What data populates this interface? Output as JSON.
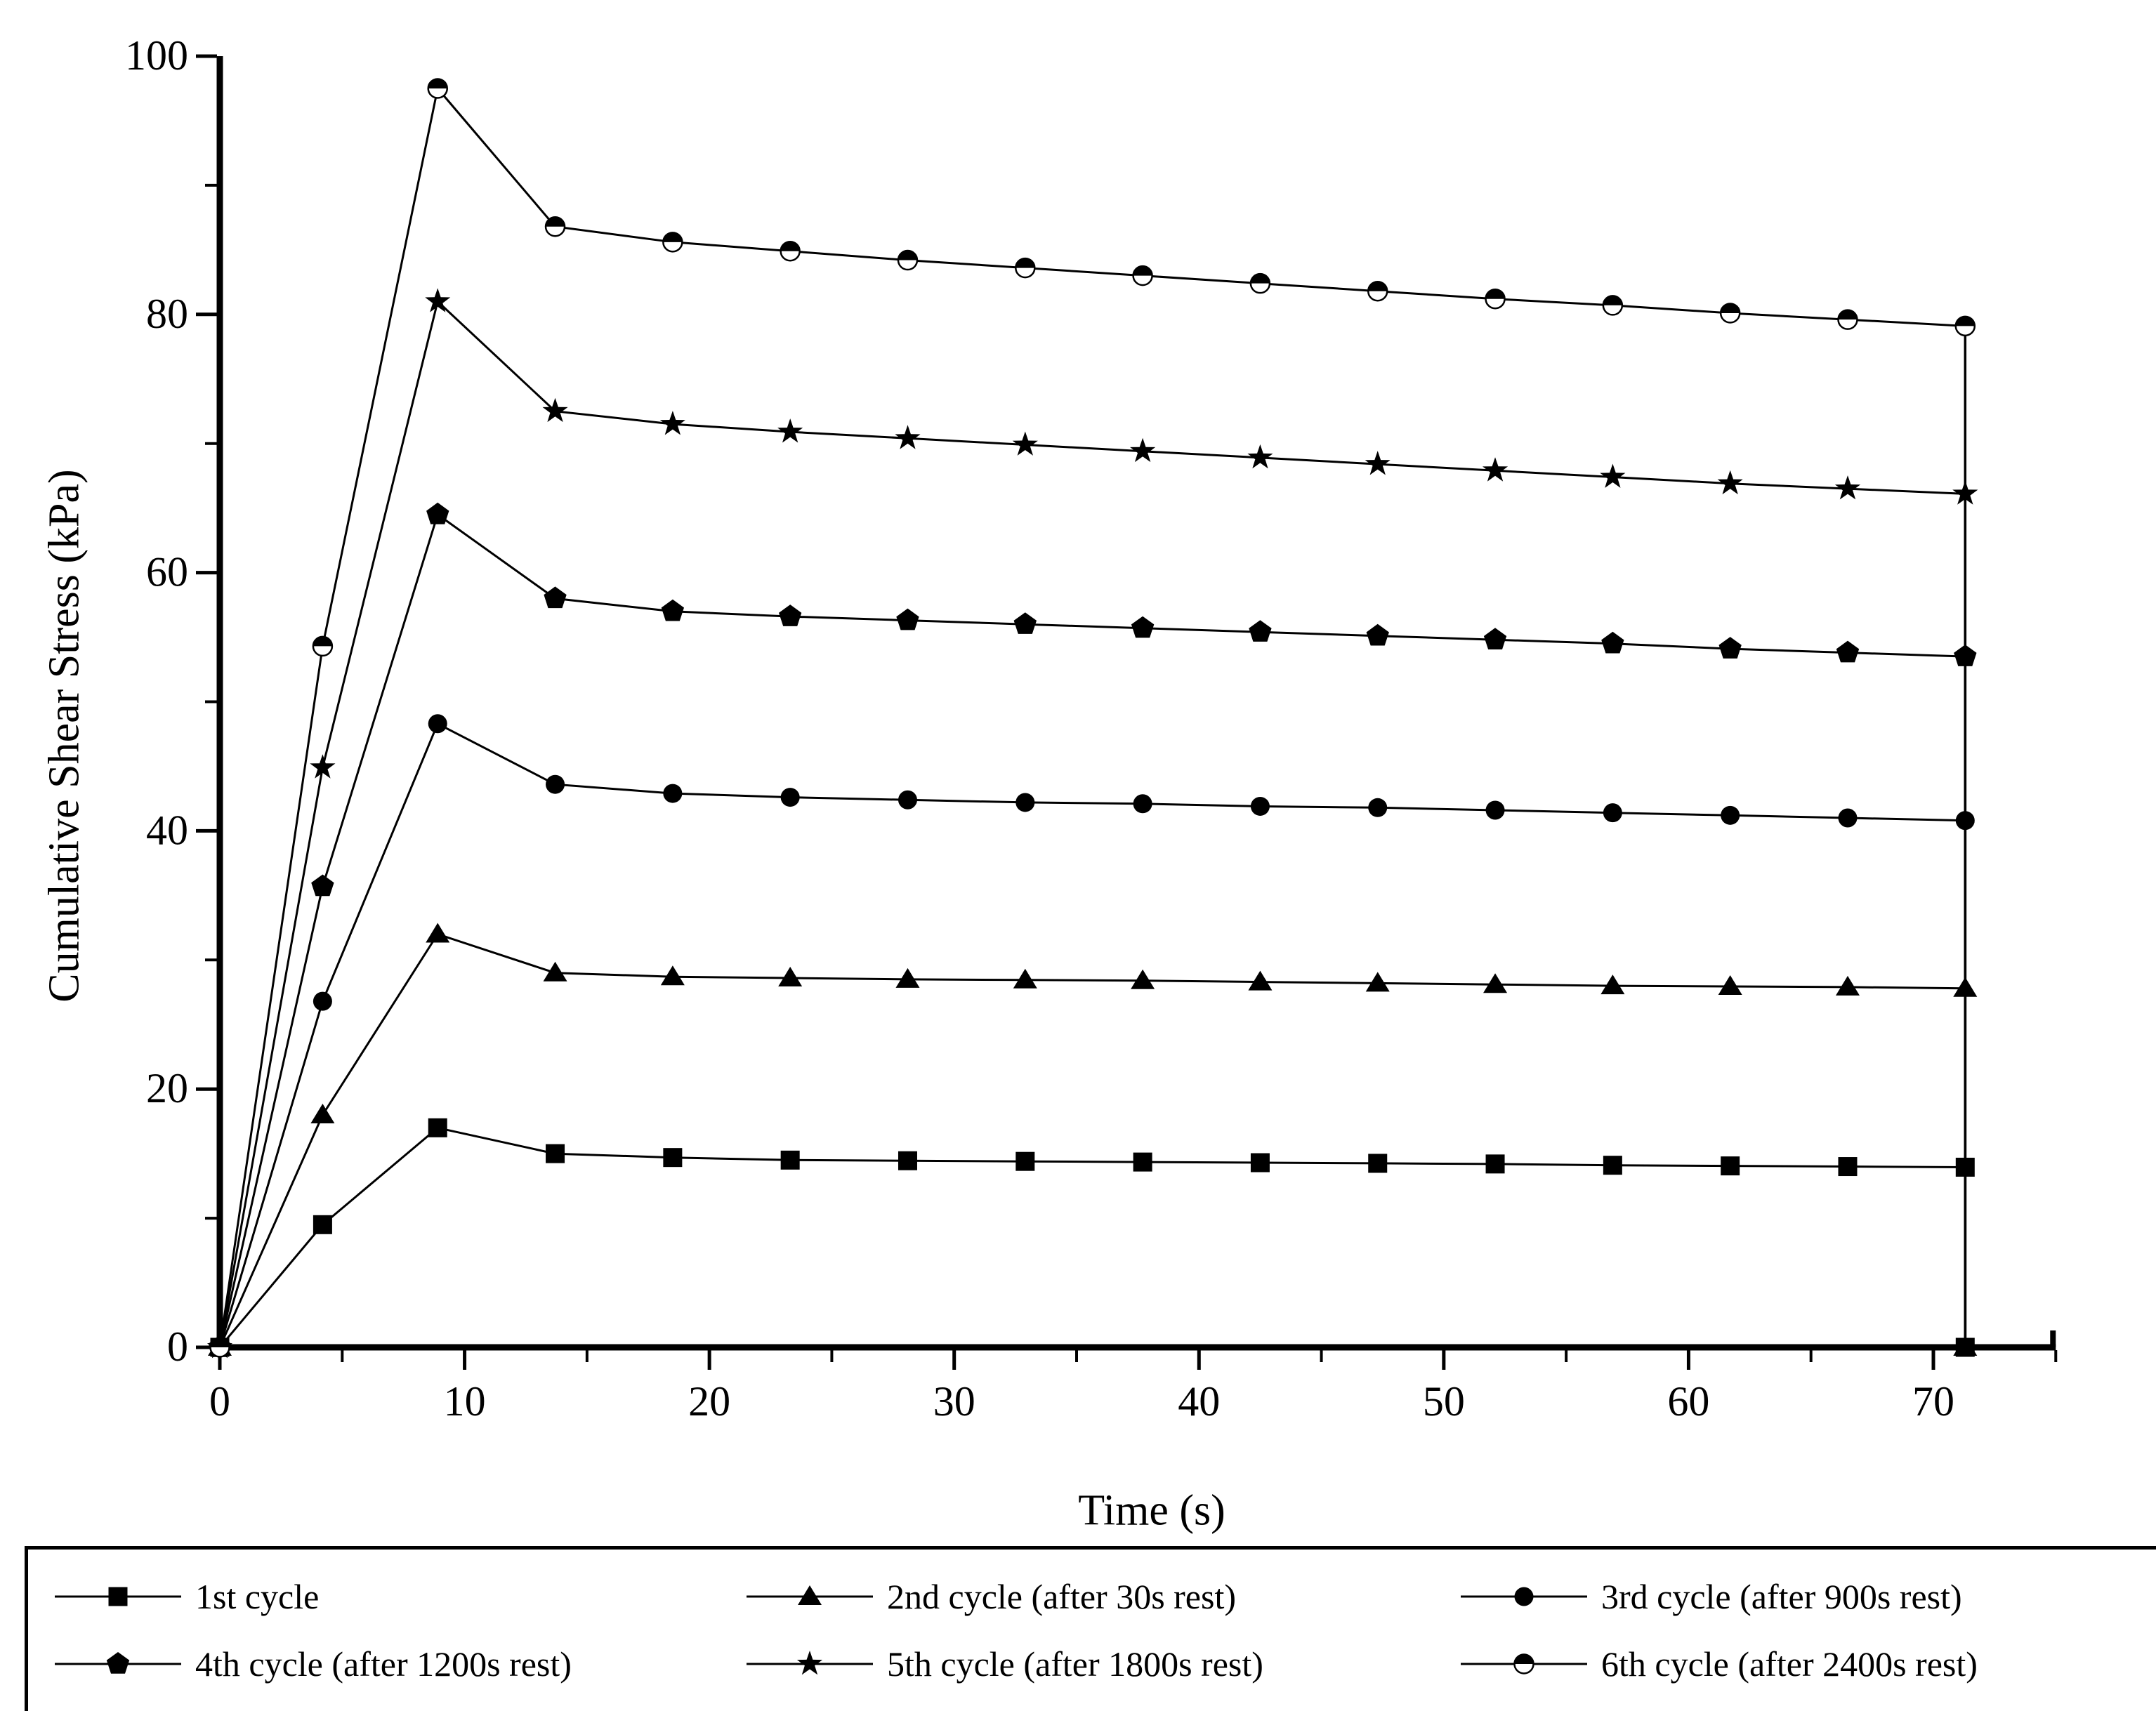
{
  "chart_data": {
    "type": "line",
    "title": "",
    "xlabel": "Time (s)",
    "ylabel": "Cumulative Shear Stress (kPa)",
    "xlim": [
      0,
      75
    ],
    "ylim": [
      0,
      100
    ],
    "x_major_ticks": [
      0,
      10,
      20,
      30,
      40,
      50,
      60,
      70
    ],
    "x_minor_ticks": [
      5,
      15,
      25,
      35,
      45,
      55,
      65,
      75
    ],
    "y_major_ticks": [
      0,
      20,
      40,
      60,
      80,
      100
    ],
    "y_minor_ticks": [
      10,
      30,
      50,
      70,
      90
    ],
    "grid": false,
    "legend_position": "bottom-outside",
    "line_color": "#000000",
    "background_color": "#ffffff",
    "x": [
      0,
      4.2,
      8.9,
      13.7,
      18.5,
      23.3,
      28.1,
      32.9,
      37.7,
      42.5,
      47.3,
      52.1,
      56.9,
      61.7,
      66.5,
      71.3
    ],
    "terminal_drop_x": 71.3,
    "series": [
      {
        "name": "1st cycle",
        "marker": "filled-square",
        "drops_to_zero_at_end": true,
        "zero_end_marker": true,
        "values": [
          0,
          9.5,
          17.0,
          15.0,
          14.7,
          14.5,
          14.45,
          14.4,
          14.35,
          14.3,
          14.25,
          14.2,
          14.1,
          14.05,
          14.0,
          13.95
        ]
      },
      {
        "name": "2nd cycle (after 30s rest)",
        "marker": "filled-triangle",
        "drops_to_zero_at_end": true,
        "zero_end_marker": true,
        "values": [
          0,
          18.0,
          32.0,
          29.0,
          28.7,
          28.6,
          28.5,
          28.45,
          28.4,
          28.3,
          28.2,
          28.1,
          28.0,
          27.95,
          27.9,
          27.8
        ]
      },
      {
        "name": "3rd cycle (after 900s rest)",
        "marker": "filled-circle",
        "drops_to_zero_at_end": true,
        "zero_end_marker": false,
        "values": [
          0,
          26.8,
          48.3,
          43.6,
          42.9,
          42.6,
          42.4,
          42.2,
          42.1,
          41.9,
          41.8,
          41.6,
          41.4,
          41.2,
          41.0,
          40.8
        ]
      },
      {
        "name": "4th cycle (after 1200s rest)",
        "marker": "filled-pentagon",
        "drops_to_zero_at_end": true,
        "zero_end_marker": false,
        "values": [
          0,
          35.7,
          64.5,
          58.0,
          57.0,
          56.6,
          56.3,
          56.0,
          55.7,
          55.4,
          55.1,
          54.8,
          54.5,
          54.1,
          53.8,
          53.5
        ]
      },
      {
        "name": "5th cycle (after 1800s rest)",
        "marker": "filled-star",
        "drops_to_zero_at_end": true,
        "zero_end_marker": false,
        "values": [
          0,
          44.9,
          81.0,
          72.5,
          71.5,
          70.9,
          70.4,
          69.9,
          69.4,
          68.9,
          68.4,
          67.9,
          67.4,
          66.9,
          66.5,
          66.1
        ]
      },
      {
        "name": "6th cycle (after 2400s rest)",
        "marker": "half-filled-circle",
        "drops_to_zero_at_end": true,
        "zero_end_marker": false,
        "values": [
          0,
          54.3,
          97.5,
          86.8,
          85.6,
          84.9,
          84.2,
          83.6,
          83.0,
          82.4,
          81.8,
          81.2,
          80.7,
          80.1,
          79.6,
          79.1
        ]
      }
    ]
  },
  "legend": {
    "rows": 2,
    "columns": 3
  }
}
